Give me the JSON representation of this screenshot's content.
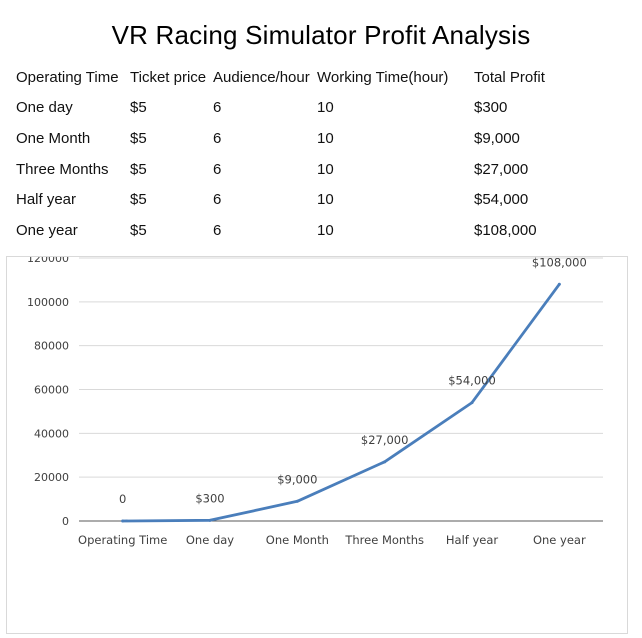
{
  "title": "VR Racing Simulator Profit Analysis",
  "table": {
    "headers": [
      "Operating Time",
      "Ticket price",
      "Audience/hour",
      "Working Time(hour)",
      "Total Profit"
    ],
    "rows": [
      [
        "One day",
        "$5",
        "6",
        "10",
        "$300"
      ],
      [
        "One Month",
        "$5",
        "6",
        "10",
        "$9,000"
      ],
      [
        "Three Months",
        "$5",
        "6",
        "10",
        "$27,000"
      ],
      [
        "Half year",
        "$5",
        "6",
        "10",
        "$54,000"
      ],
      [
        "One year",
        "$5",
        "6",
        "10",
        "$108,000"
      ]
    ]
  },
  "chart_data": {
    "type": "line",
    "title": "",
    "xlabel": "",
    "ylabel": "",
    "categories": [
      "Operating Time",
      "One day",
      "One Month",
      "Three Months",
      "Half year",
      "One year"
    ],
    "series": [
      {
        "values": [
          0,
          300,
          9000,
          27000,
          54000,
          108000
        ],
        "labels": [
          "0",
          "$300",
          "$9,000",
          "$27,000",
          "$54,000",
          "$108,000"
        ]
      }
    ],
    "ylim": [
      0,
      120000
    ],
    "yticks": [
      "0",
      "20000",
      "40000",
      "60000",
      "80000",
      "100000",
      "120000"
    ],
    "grid": true,
    "legend": "none",
    "colors": {
      "line": "#4a7ebb",
      "grid": "#d9d9d9",
      "axis": "#595959"
    }
  }
}
